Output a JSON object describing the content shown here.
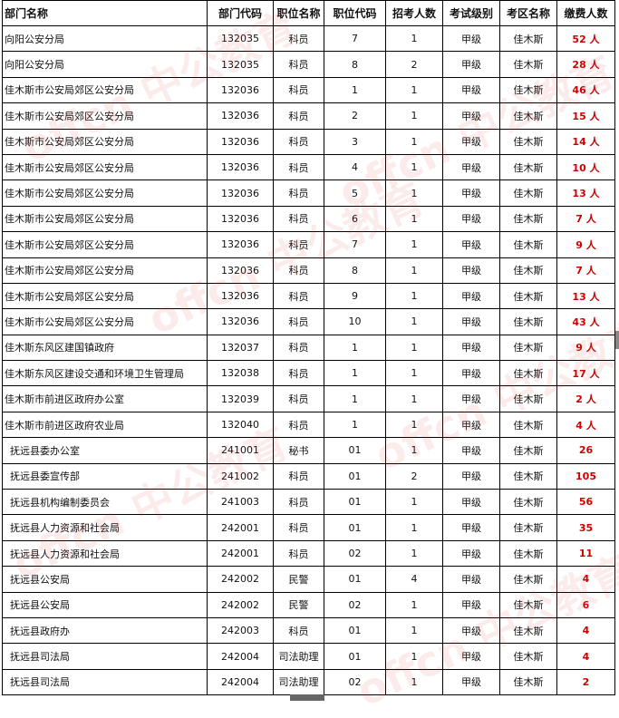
{
  "watermark": "offcn 中公教育",
  "headers": [
    "部门名称",
    "部门代码",
    "职位名称",
    "职位代码",
    "招考人数",
    "考试级别",
    "考区名称",
    "缴费人数"
  ],
  "rows": [
    [
      "向阳公安分局",
      "132035",
      "科员",
      "7",
      "1",
      "甲级",
      "佳木斯",
      "52 人"
    ],
    [
      "向阳公安分局",
      "132035",
      "科员",
      "8",
      "2",
      "甲级",
      "佳木斯",
      "28 人"
    ],
    [
      "佳木斯市公安局郊区公安分局",
      "132036",
      "科员",
      "1",
      "1",
      "甲级",
      "佳木斯",
      "46 人"
    ],
    [
      "佳木斯市公安局郊区公安分局",
      "132036",
      "科员",
      "2",
      "1",
      "甲级",
      "佳木斯",
      "15 人"
    ],
    [
      "佳木斯市公安局郊区公安分局",
      "132036",
      "科员",
      "3",
      "1",
      "甲级",
      "佳木斯",
      "14 人"
    ],
    [
      "佳木斯市公安局郊区公安分局",
      "132036",
      "科员",
      "4",
      "1",
      "甲级",
      "佳木斯",
      "10 人"
    ],
    [
      "佳木斯市公安局郊区公安分局",
      "132036",
      "科员",
      "5",
      "1",
      "甲级",
      "佳木斯",
      "13 人"
    ],
    [
      "佳木斯市公安局郊区公安分局",
      "132036",
      "科员",
      "6",
      "1",
      "甲级",
      "佳木斯",
      "7 人"
    ],
    [
      "佳木斯市公安局郊区公安分局",
      "132036",
      "科员",
      "7",
      "1",
      "甲级",
      "佳木斯",
      "9 人"
    ],
    [
      "佳木斯市公安局郊区公安分局",
      "132036",
      "科员",
      "8",
      "1",
      "甲级",
      "佳木斯",
      "7 人"
    ],
    [
      "佳木斯市公安局郊区公安分局",
      "132036",
      "科员",
      "9",
      "1",
      "甲级",
      "佳木斯",
      "13 人"
    ],
    [
      "佳木斯市公安局郊区公安分局",
      "132036",
      "科员",
      "10",
      "1",
      "甲级",
      "佳木斯",
      "43 人"
    ],
    [
      "佳木斯东风区建国镇政府",
      "132037",
      "科员",
      "1",
      "1",
      "甲级",
      "佳木斯",
      "9 人"
    ],
    [
      "佳木斯东风区建设交通和环境卫生管理局",
      "132038",
      "科员",
      "1",
      "1",
      "甲级",
      "佳木斯",
      "17 人"
    ],
    [
      "佳木斯市前进区政府办公室",
      "132039",
      "科员",
      "1",
      "1",
      "甲级",
      "佳木斯",
      "2 人"
    ],
    [
      "佳木斯市前进区政府农业局",
      "132040",
      "科员",
      "1",
      "1",
      "甲级",
      "佳木斯",
      "4 人"
    ],
    [
      "抚远县委办公室",
      "241001",
      "秘书",
      "01",
      "1",
      "甲级",
      "佳木斯",
      "26"
    ],
    [
      "抚远县委宣传部",
      "241002",
      "科员",
      "01",
      "2",
      "甲级",
      "佳木斯",
      "105"
    ],
    [
      "抚远县机构编制委员会",
      "241003",
      "科员",
      "01",
      "1",
      "甲级",
      "佳木斯",
      "56"
    ],
    [
      "抚远县人力资源和社会局",
      "242001",
      "科员",
      "01",
      "1",
      "甲级",
      "佳木斯",
      "35"
    ],
    [
      "抚远县人力资源和社会局",
      "242001",
      "科员",
      "02",
      "1",
      "甲级",
      "佳木斯",
      "11"
    ],
    [
      "抚远县公安局",
      "242002",
      "民警",
      "01",
      "4",
      "甲级",
      "佳木斯",
      "4"
    ],
    [
      "抚远县公安局",
      "242002",
      "民警",
      "02",
      "1",
      "甲级",
      "佳木斯",
      "6"
    ],
    [
      "抚远县政府办",
      "242003",
      "科员",
      "01",
      "1",
      "甲级",
      "佳木斯",
      "4"
    ],
    [
      "抚远县司法局",
      "242004",
      "司法助理",
      "01",
      "1",
      "甲级",
      "佳木斯",
      "4"
    ],
    [
      "抚远县司法局",
      "242004",
      "司法助理",
      "02",
      "1",
      "甲级",
      "佳木斯",
      "2"
    ]
  ]
}
